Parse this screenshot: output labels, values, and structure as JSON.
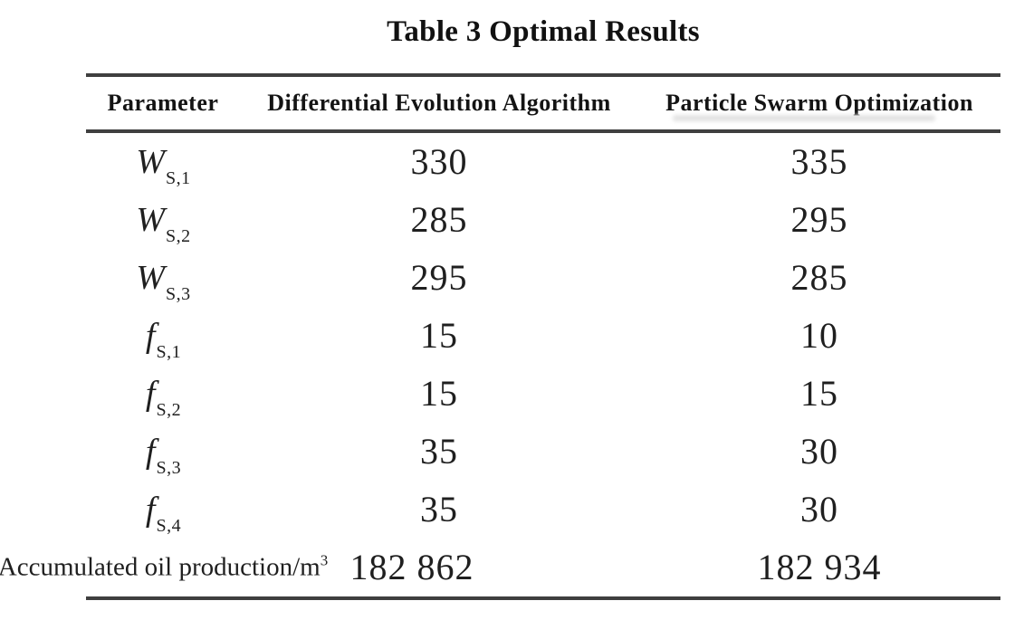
{
  "page": {
    "title": "Table 3 Optimal Results"
  },
  "table": {
    "headers": {
      "parameter": "Parameter",
      "de": "Differential Evolution Algorithm",
      "pso": "Particle Swarm Optimization"
    },
    "rows": [
      {
        "base": "W",
        "sub": "S,1",
        "de": "330",
        "pso": "335"
      },
      {
        "base": "W",
        "sub": "S,2",
        "de": "285",
        "pso": "295"
      },
      {
        "base": "W",
        "sub": "S,3",
        "de": "295",
        "pso": "285"
      },
      {
        "base": "f",
        "sub": "S,1",
        "de": "15",
        "pso": "10"
      },
      {
        "base": "f",
        "sub": "S,2",
        "de": "15",
        "pso": "15"
      },
      {
        "base": "f",
        "sub": "S,3",
        "de": "35",
        "pso": "30"
      },
      {
        "base": "f",
        "sub": "S,4",
        "de": "35",
        "pso": "30"
      },
      {
        "base": "Accumulated oil production/m",
        "sup": "3",
        "de": "182 862",
        "pso": "182 934"
      }
    ],
    "colors": {
      "text": "#1f1f1f",
      "rule": "#3f3f3f",
      "background": "#ffffff"
    }
  }
}
